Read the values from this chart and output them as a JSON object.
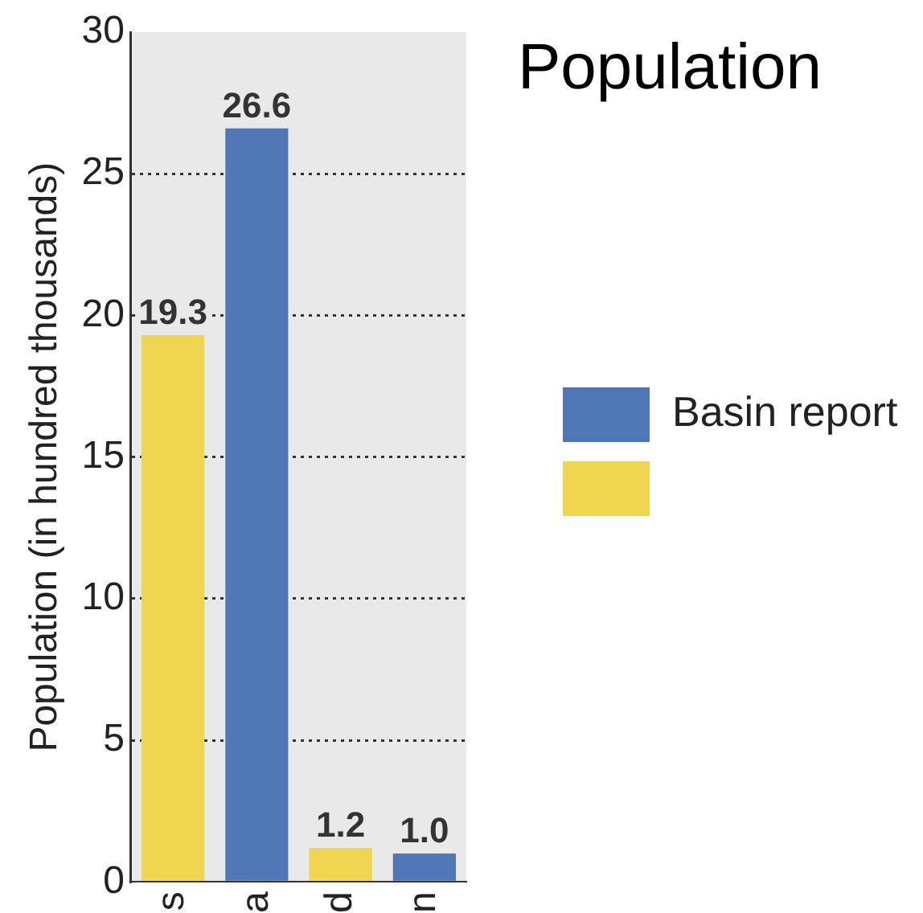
{
  "chart_data": {
    "type": "bar",
    "title": "Population",
    "ylabel": "Population (in hundred thousands)",
    "categories": [
      "s",
      "a",
      "d",
      "n"
    ],
    "series": [
      {
        "name": "Basin report",
        "color": "#4f76b5",
        "values": [
          null,
          26.6,
          null,
          1.0
        ],
        "value_labels": [
          null,
          "26.6",
          null,
          "1.0"
        ]
      },
      {
        "color": "#f0d550",
        "values": [
          19.3,
          null,
          1.2,
          null
        ],
        "value_labels": [
          "19.3",
          null,
          "1.2",
          null
        ]
      }
    ],
    "ylim": [
      0,
      30
    ],
    "yticks": [
      0,
      5,
      10,
      15,
      20,
      25,
      30
    ],
    "grid": "y",
    "legend": "right"
  }
}
